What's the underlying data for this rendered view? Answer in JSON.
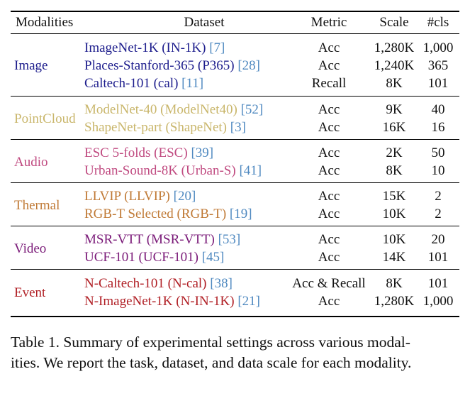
{
  "table": {
    "headers": {
      "modalities": "Modalities",
      "dataset": "Dataset",
      "metric": "Metric",
      "scale": "Scale",
      "cls": "#cls"
    },
    "groups": [
      {
        "modality": "Image",
        "color": "#1c1c8c",
        "rows": [
          {
            "dataset": "ImageNet-1K (IN-1K)",
            "cite": "[7]",
            "metric": "Acc",
            "scale": "1,280K",
            "cls": "1,000"
          },
          {
            "dataset": "Places-Stanford-365 (P365)",
            "cite": "[28]",
            "metric": "Acc",
            "scale": "1,240K",
            "cls": "365"
          },
          {
            "dataset": "Caltech-101 (cal)",
            "cite": "[11]",
            "metric": "Recall",
            "scale": "8K",
            "cls": "101"
          }
        ]
      },
      {
        "modality": "PointCloud",
        "color": "#c9b66b",
        "rows": [
          {
            "dataset": "ModelNet-40 (ModelNet40)",
            "cite": "[52]",
            "metric": "Acc",
            "scale": "9K",
            "cls": "40"
          },
          {
            "dataset": "ShapeNet-part (ShapeNet)",
            "cite": "[3]",
            "metric": "Acc",
            "scale": "16K",
            "cls": "16"
          }
        ]
      },
      {
        "modality": "Audio",
        "color": "#c04a80",
        "rows": [
          {
            "dataset": "ESC 5-folds (ESC)",
            "cite": "[39]",
            "metric": "Acc",
            "scale": "2K",
            "cls": "50"
          },
          {
            "dataset": "Urban-Sound-8K (Urban-S)",
            "cite": "[41]",
            "metric": "Acc",
            "scale": "8K",
            "cls": "10"
          }
        ]
      },
      {
        "modality": "Thermal",
        "color": "#c07a36",
        "rows": [
          {
            "dataset": "LLVIP (LLVIP)",
            "cite": "[20]",
            "metric": "Acc",
            "scale": "15K",
            "cls": "2"
          },
          {
            "dataset": "RGB-T Selected (RGB-T)",
            "cite": "[19]",
            "metric": "Acc",
            "scale": "10K",
            "cls": "2"
          }
        ]
      },
      {
        "modality": "Video",
        "color": "#7a1a78",
        "rows": [
          {
            "dataset": "MSR-VTT (MSR-VTT)",
            "cite": "[53]",
            "metric": "Acc",
            "scale": "10K",
            "cls": "20"
          },
          {
            "dataset": "UCF-101 (UCF-101)",
            "cite": "[45]",
            "metric": "Acc",
            "scale": "14K",
            "cls": "101"
          }
        ]
      },
      {
        "modality": "Event",
        "color": "#b01e24",
        "rows": [
          {
            "dataset": "N-Caltech-101 (N-cal)",
            "cite": "[38]",
            "metric": "Acc & Recall",
            "scale": "8K",
            "cls": "101"
          },
          {
            "dataset": "N-ImageNet-1K (N-IN-1K)",
            "cite": "[21]",
            "metric": "Acc",
            "scale": "1,280K",
            "cls": "1,000"
          }
        ]
      }
    ],
    "cite_color": "#4f89c0"
  },
  "caption": {
    "line1": "Table 1. Summary of experimental settings across various modal-",
    "line2": "ities. We report the task, dataset, and data scale for each modality."
  }
}
